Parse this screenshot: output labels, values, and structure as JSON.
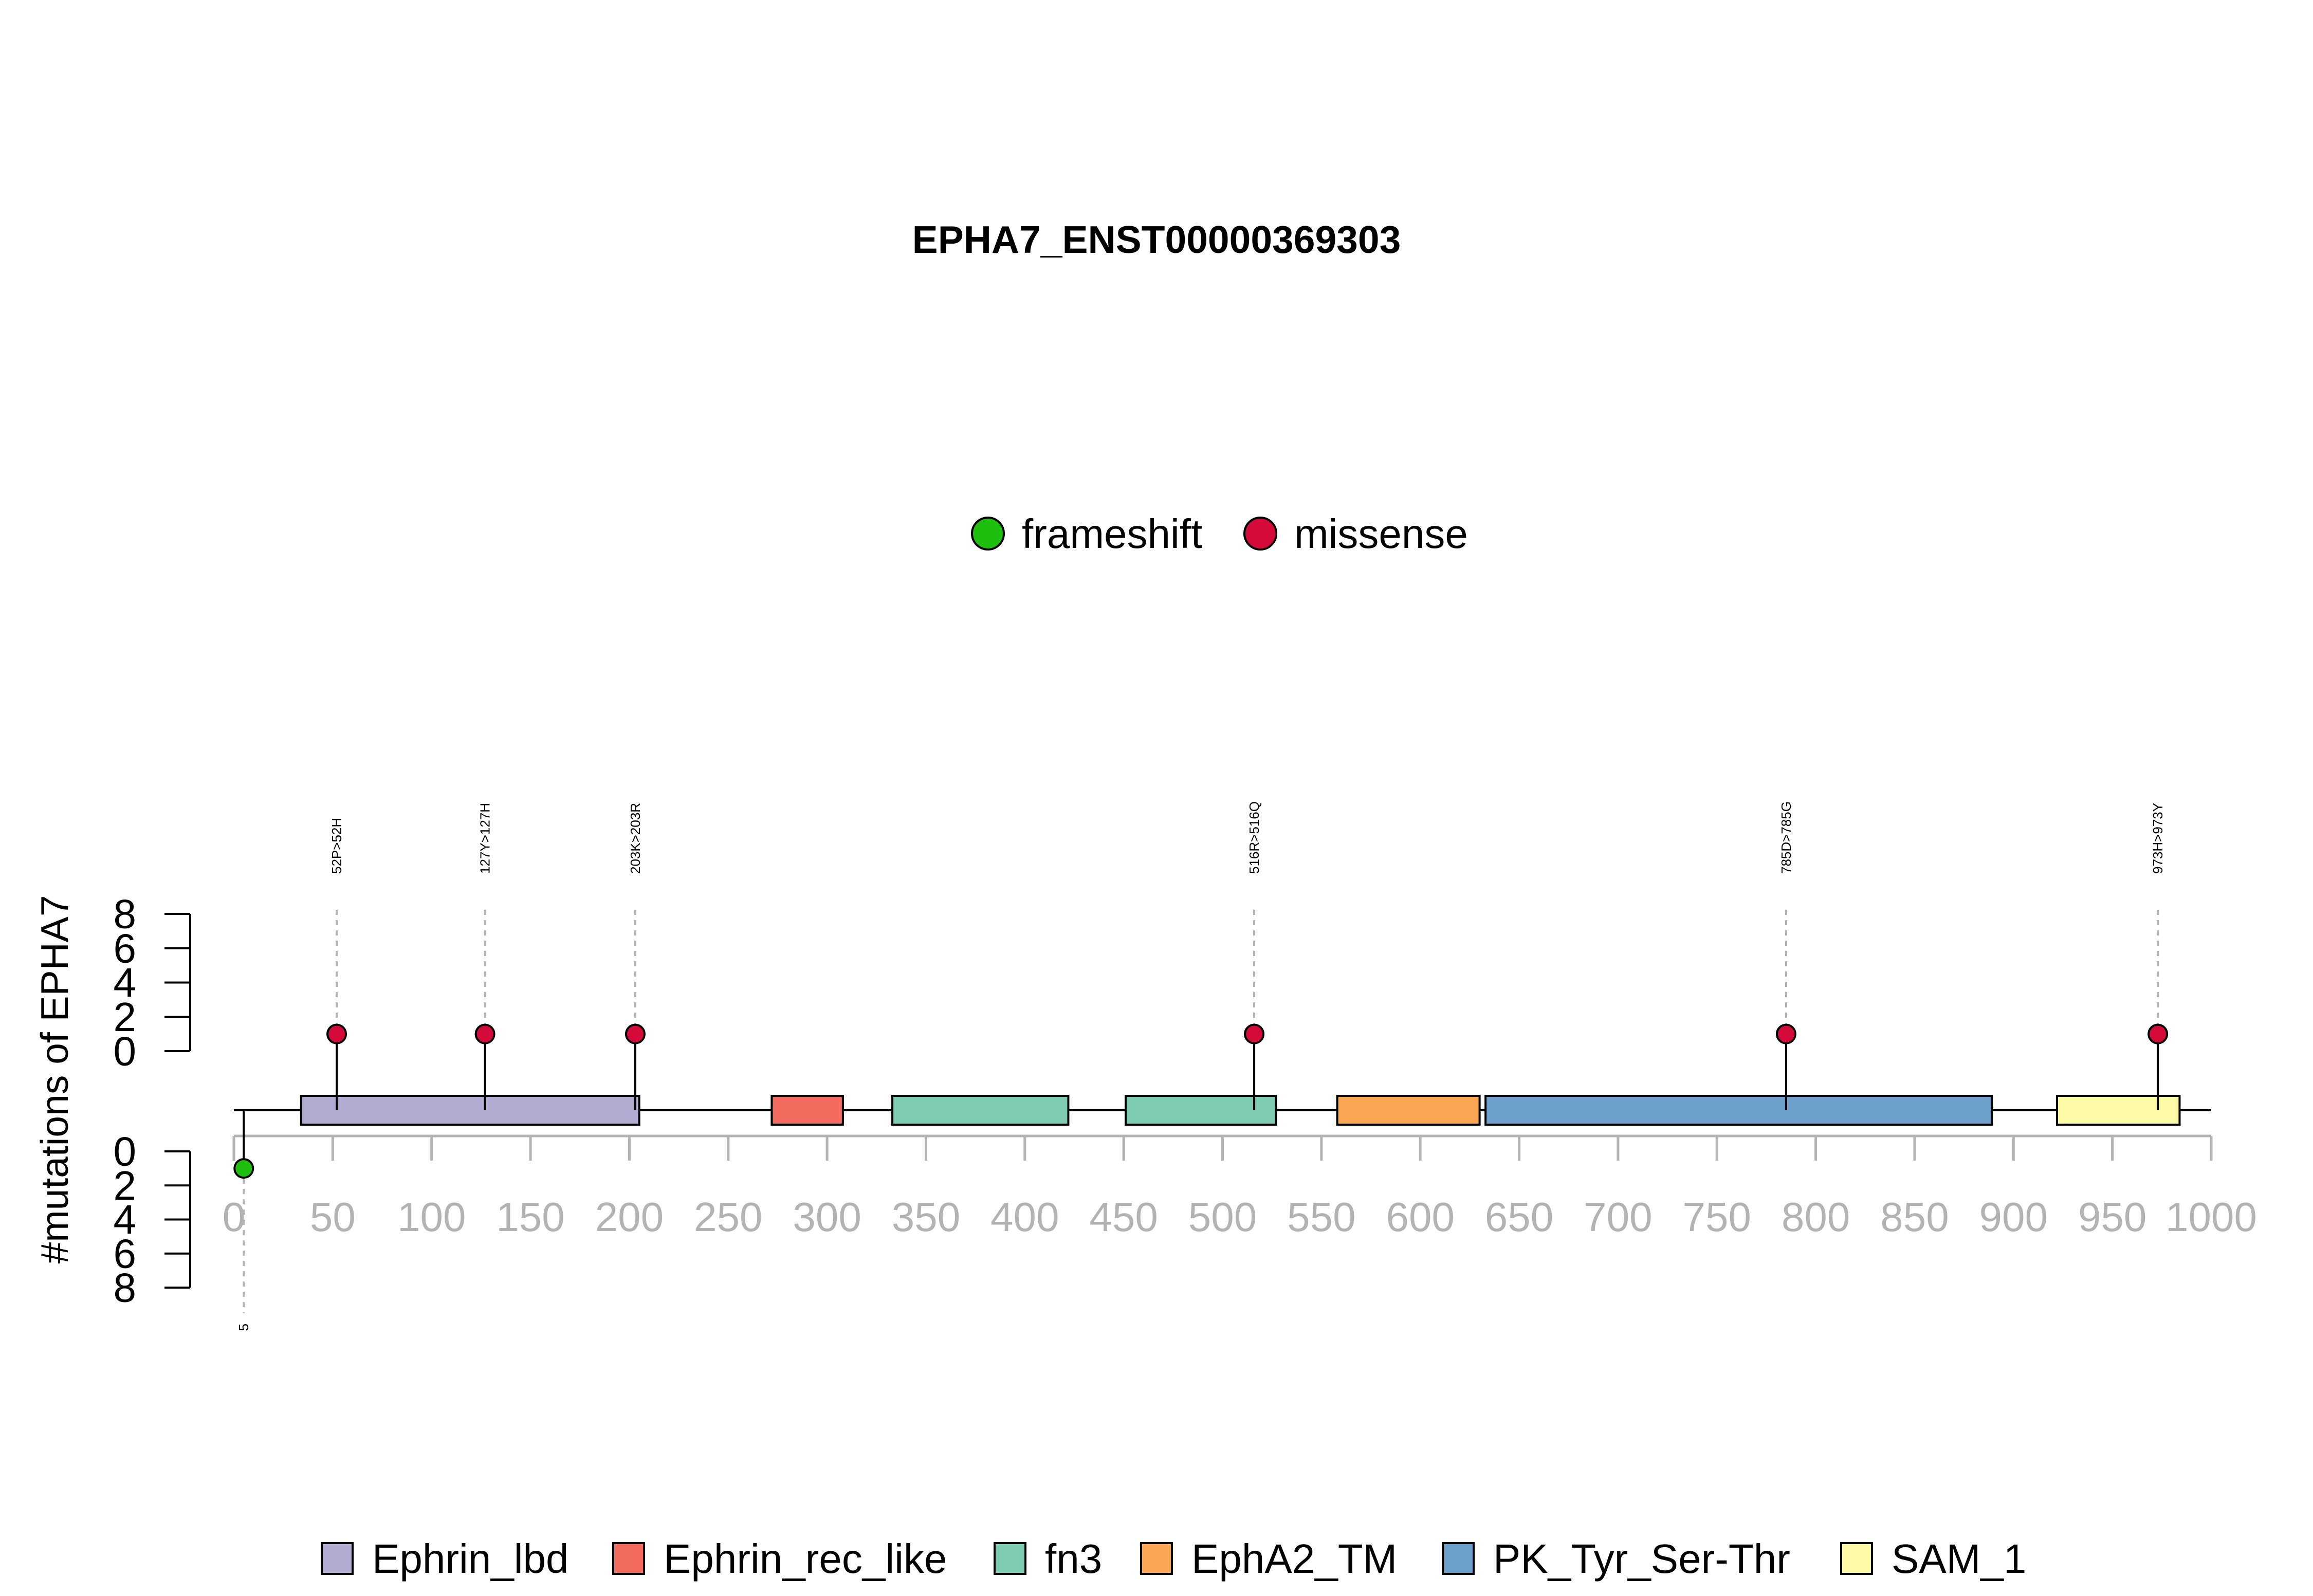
{
  "chart_data": {
    "type": "lollipop",
    "title": "EPHA7_ENST00000369303",
    "ylabel": "#mutations of EPHA7",
    "x_axis": {
      "range": [
        0,
        1000
      ],
      "ticks": [
        0,
        50,
        100,
        150,
        200,
        250,
        300,
        350,
        400,
        450,
        500,
        550,
        600,
        650,
        700,
        750,
        800,
        850,
        900,
        950,
        1000
      ]
    },
    "y_axis_upper": {
      "range": [
        0,
        8
      ],
      "ticks": [
        0,
        2,
        4,
        6,
        8
      ]
    },
    "y_axis_lower": {
      "range": [
        0,
        8
      ],
      "ticks": [
        0,
        2,
        4,
        6,
        8
      ]
    },
    "mutation_legend": [
      {
        "name": "frameshift",
        "color": "#1fbf0f"
      },
      {
        "name": "missense",
        "color": "#d40a3a"
      }
    ],
    "domain_legend": [
      {
        "name": "Ephrin_lbd",
        "color": "#b3abd1"
      },
      {
        "name": "Ephrin_rec_like",
        "color": "#f26b5e"
      },
      {
        "name": "fn3",
        "color": "#7ecbb4"
      },
      {
        "name": "EphA2_TM",
        "color": "#faa652"
      },
      {
        "name": "PK_Tyr_Ser-Thr",
        "color": "#6c9fc9"
      },
      {
        "name": "SAM_1",
        "color": "#fdfaa6"
      }
    ],
    "domains": [
      {
        "name": "Ephrin_lbd",
        "start": 34,
        "end": 205,
        "color": "#b3abd1"
      },
      {
        "name": "Ephrin_rec_like",
        "start": 272,
        "end": 308,
        "color": "#f26b5e"
      },
      {
        "name": "fn3",
        "start": 333,
        "end": 422,
        "color": "#7ecbb4"
      },
      {
        "name": "fn3",
        "start": 451,
        "end": 527,
        "color": "#7ecbb4"
      },
      {
        "name": "EphA2_TM",
        "start": 558,
        "end": 630,
        "color": "#faa652"
      },
      {
        "name": "PK_Tyr_Ser-Thr",
        "start": 633,
        "end": 889,
        "color": "#6c9fc9"
      },
      {
        "name": "SAM_1",
        "start": 922,
        "end": 984,
        "color": "#fdfaa6"
      }
    ],
    "mutations_upper": [
      {
        "label": "52P>52H",
        "position": 52,
        "count": 1,
        "type": "missense"
      },
      {
        "label": "127Y>127H",
        "position": 127,
        "count": 1,
        "type": "missense"
      },
      {
        "label": "203K>203R",
        "position": 203,
        "count": 1,
        "type": "missense"
      },
      {
        "label": "516R>516Q",
        "position": 516,
        "count": 1,
        "type": "missense"
      },
      {
        "label": "785D>785G",
        "position": 785,
        "count": 1,
        "type": "missense"
      },
      {
        "label": "973H>973Y",
        "position": 973,
        "count": 1,
        "type": "missense"
      }
    ],
    "mutations_lower": [
      {
        "label": "5",
        "position": 5,
        "count": 1,
        "type": "frameshift"
      }
    ],
    "protein_length": 1000
  }
}
